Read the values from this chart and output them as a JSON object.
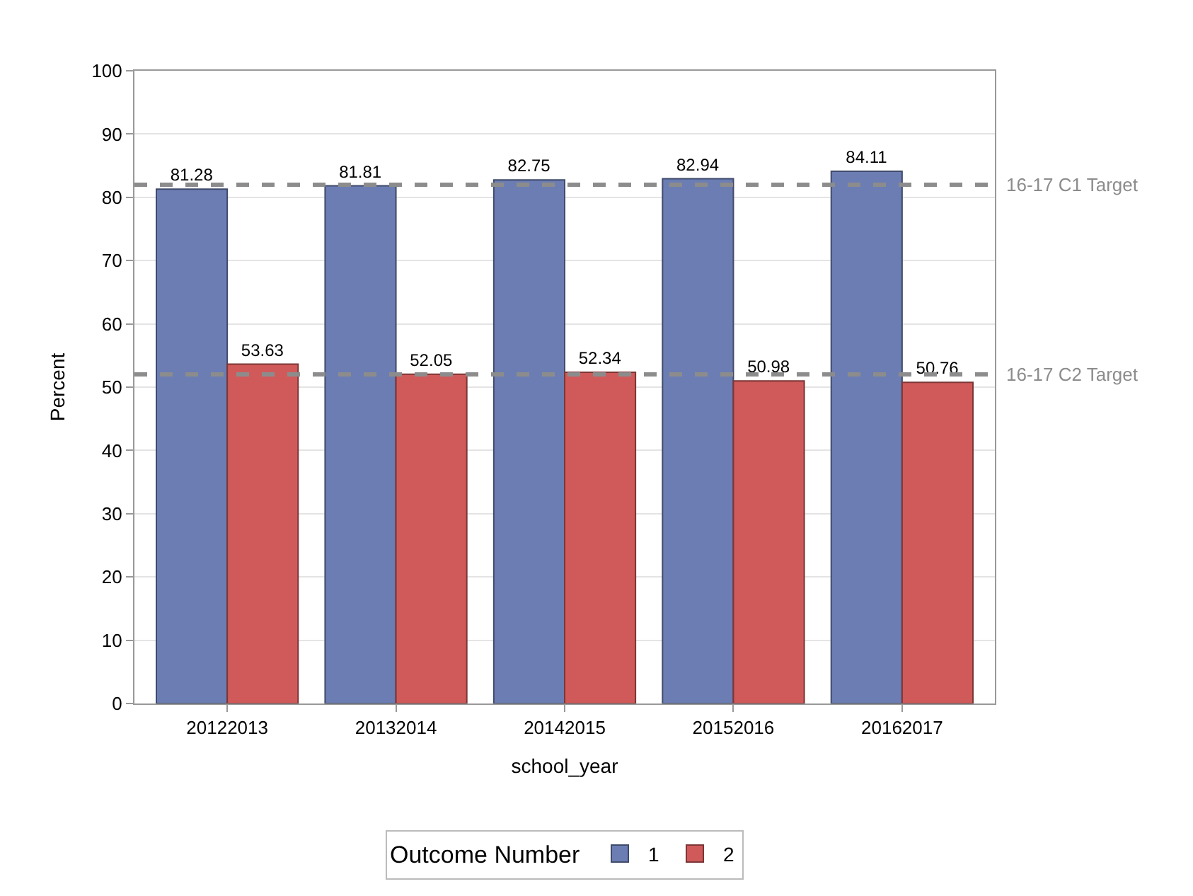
{
  "chart_data": {
    "type": "bar",
    "xlabel": "school_year",
    "ylabel": "Percent",
    "legend_title": "Outcome Number",
    "categories": [
      "20122013",
      "20132014",
      "20142015",
      "20152016",
      "20162017"
    ],
    "series": [
      {
        "name": "1",
        "color": "#6b7db3",
        "values": [
          81.28,
          81.81,
          82.75,
          82.94,
          84.11
        ]
      },
      {
        "name": "2",
        "color": "#d05a5a",
        "values": [
          53.63,
          52.05,
          52.34,
          50.98,
          50.76
        ]
      }
    ],
    "ylim": [
      0,
      100
    ],
    "yticks": [
      0,
      10,
      20,
      30,
      40,
      50,
      60,
      70,
      80,
      90,
      100
    ],
    "ref_lines": [
      {
        "axis": "y",
        "value": 82,
        "label": "16-17 C1 Target",
        "color": "#8c8c8c",
        "line_style": "dashed"
      },
      {
        "axis": "y",
        "value": 52,
        "label": "16-17 C2 Target",
        "color": "#8c8c8c",
        "line_style": "dashed"
      }
    ],
    "data_labels": true,
    "grid": "y",
    "legend": "bottom"
  }
}
